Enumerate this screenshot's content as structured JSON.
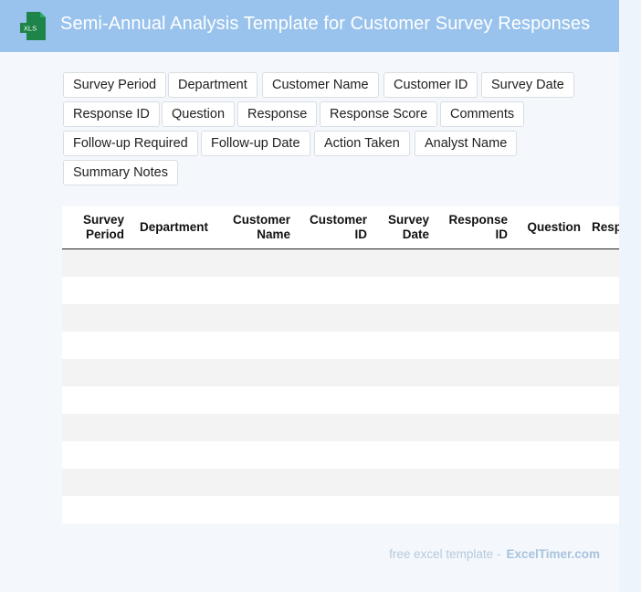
{
  "header": {
    "title": "Semi-Annual Analysis Template for Customer Survey Responses",
    "icon": "xls-file-icon",
    "icon_label": "XLS",
    "background_color": "#99c3ec"
  },
  "field_chips": [
    "Survey Period",
    "Department",
    "Customer Name",
    "Customer ID",
    "Survey Date",
    "Response ID",
    "Question",
    "Response",
    "Response Score",
    "Comments",
    "Follow-up Required",
    "Follow-up Date",
    "Action Taken",
    "Analyst Name",
    "Summary Notes"
  ],
  "table": {
    "columns": [
      [
        "Survey",
        "Period"
      ],
      [
        "Department"
      ],
      [
        "Customer",
        "Name"
      ],
      [
        "Customer",
        "ID"
      ],
      [
        "Survey",
        "Date"
      ],
      [
        "Response",
        "ID"
      ],
      [
        "Question"
      ],
      [
        "Resp"
      ]
    ],
    "row_count": 10
  },
  "footer": {
    "text": "free excel template -",
    "brand": "ExcelTimer.com"
  }
}
